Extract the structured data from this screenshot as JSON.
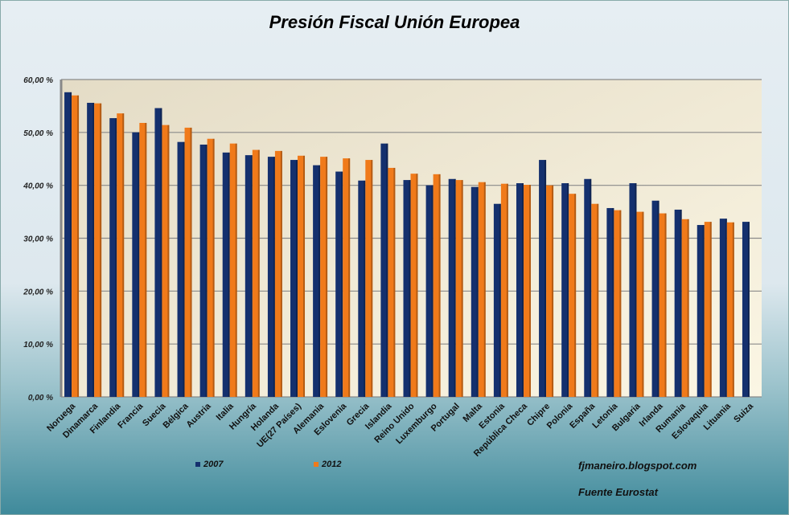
{
  "chart_data": {
    "type": "bar",
    "title": "Presión Fiscal Unión Europea",
    "xlabel": "",
    "ylabel": "",
    "ylim": [
      0,
      60
    ],
    "y_ticks": [
      "0,00 %",
      "10,00 %",
      "20,00 %",
      "30,00 %",
      "40,00 %",
      "50,00 %",
      "60,00 %"
    ],
    "grid": true,
    "legend_position": "bottom-left",
    "categories": [
      "Noruega",
      "Dinamarca",
      "Finlandia",
      "Francia",
      "Suecia",
      "Bélgica",
      "Austria",
      "Italia",
      "Hungría",
      "Holanda",
      "UE(27 Países)",
      "Alemania",
      "Eslovenia",
      "Grecia",
      "Islandia",
      "Reino Unido",
      "Luxemburgo",
      "Portugal",
      "Malta",
      "Estonia",
      "República Checa",
      "Chipre",
      "Polonia",
      "España",
      "Letonia",
      "Bulgaria",
      "Irlanda",
      "Rumania",
      "Eslovaquia",
      "Lituania",
      "Suiza"
    ],
    "series": [
      {
        "name": "2007",
        "color": "#14306e",
        "values": [
          57.6,
          55.6,
          52.7,
          50.0,
          54.6,
          48.2,
          47.7,
          46.2,
          45.7,
          45.4,
          44.8,
          43.8,
          42.6,
          40.9,
          47.9,
          41.0,
          40.0,
          41.2,
          39.7,
          36.5,
          40.4,
          44.8,
          40.4,
          41.2,
          35.7,
          40.4,
          37.1,
          35.4,
          32.5,
          33.7,
          33.1
        ]
      },
      {
        "name": "2012",
        "color": "#f07a1a",
        "values": [
          57.0,
          55.5,
          53.6,
          51.8,
          51.4,
          50.9,
          48.8,
          47.9,
          46.7,
          46.5,
          45.6,
          45.4,
          45.1,
          44.8,
          43.3,
          42.2,
          42.1,
          41.0,
          40.6,
          40.3,
          40.1,
          40.0,
          38.4,
          36.5,
          35.3,
          35.0,
          34.7,
          33.6,
          33.1,
          33.0,
          null
        ]
      }
    ]
  },
  "footer": {
    "blog": "fjmaneiro.blogspot.com",
    "source": "Fuente Eurostat"
  }
}
